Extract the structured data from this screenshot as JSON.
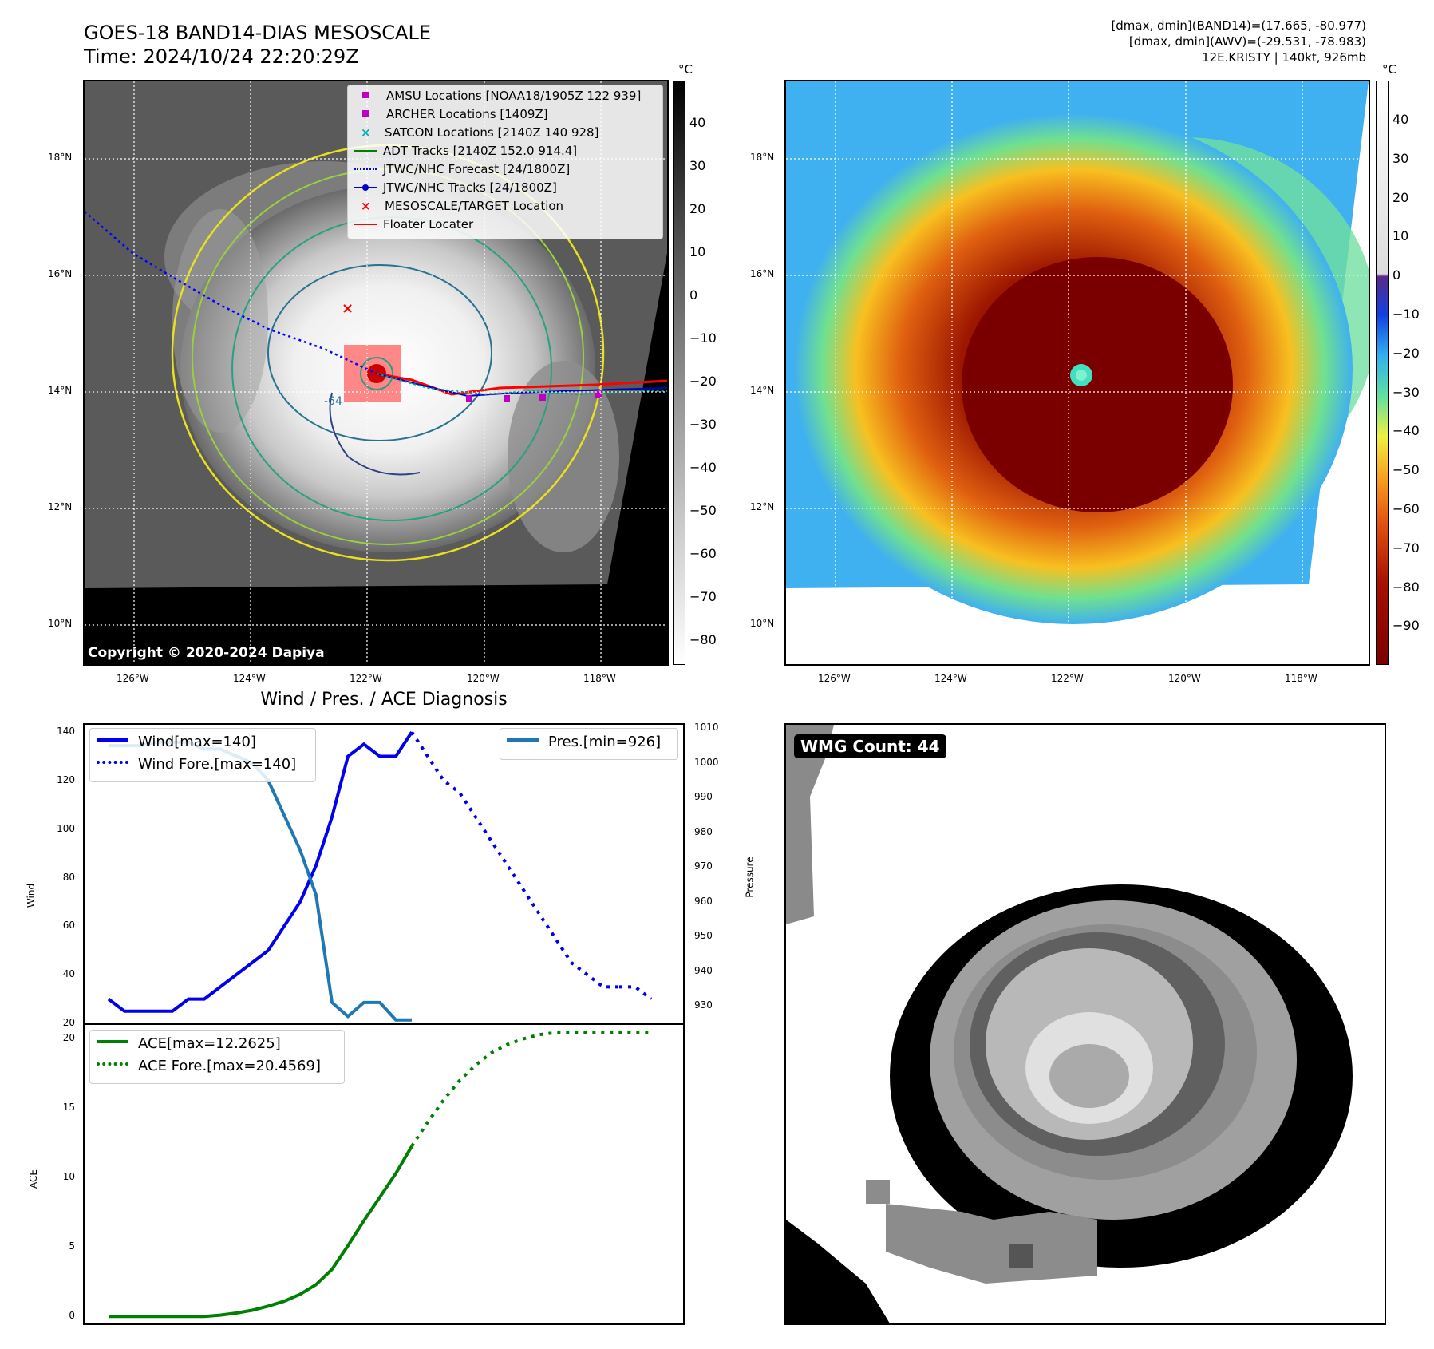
{
  "header": {
    "title_line1": "GOES-18 BAND14-DIAS MESOSCALE",
    "title_line2": "Time: 2024/10/24 22:20:29Z",
    "right_line1": "[dmax, dmin](BAND14)=(17.665, -80.977)",
    "right_line2": "[dmax, dmin](AWV)=(-29.531, -78.983)",
    "right_line3": "12E.KRISTY | 140kt, 926mb"
  },
  "maps": {
    "lon_ticks": [
      "126°W",
      "124°W",
      "122°W",
      "120°W",
      "118°W"
    ],
    "lat_ticks": [
      "18°N",
      "16°N",
      "14°N",
      "12°N",
      "10°N"
    ],
    "copyright": "Copyright © 2020-2024 Dapiya",
    "contour_label": "-64"
  },
  "colorbar_left": {
    "unit": "°C",
    "ticks": [
      "40",
      "30",
      "20",
      "10",
      "0",
      "−10",
      "−20",
      "−30",
      "−40",
      "−50",
      "−60",
      "−70",
      "−80"
    ]
  },
  "colorbar_right": {
    "unit": "°C",
    "ticks": [
      "40",
      "30",
      "20",
      "10",
      "0",
      "−10",
      "−20",
      "−30",
      "−40",
      "−50",
      "−60",
      "−70",
      "−80",
      "−90"
    ]
  },
  "map_legend": {
    "items": [
      {
        "label": "AMSU Locations [NOAA18/1905Z 122 939]",
        "color": "#c000c0",
        "marker": "square"
      },
      {
        "label": "ARCHER Locations [1409Z]",
        "color": "#c000c0",
        "marker": "square"
      },
      {
        "label": "SATCON Locations [2140Z 140 928]",
        "color": "#00b0b0",
        "marker": "x"
      },
      {
        "label": "ADT Tracks [2140Z 152.0 914.4]",
        "color": "#008000",
        "marker": "line"
      },
      {
        "label": "JTWC/NHC Forecast [24/1800Z]",
        "color": "#0000ff",
        "marker": "dotted"
      },
      {
        "label": "JTWC/NHC Tracks [24/1800Z]",
        "color": "#0000cc",
        "marker": "line-dot"
      },
      {
        "label": "MESOSCALE/TARGET Location",
        "color": "#ff0000",
        "marker": "x"
      },
      {
        "label": "Floater Locater",
        "color": "#ff0000",
        "marker": "line"
      }
    ]
  },
  "diag": {
    "title": "Wind / Pres. / ACE Diagnosis",
    "wind_axis_label": "Wind",
    "pressure_axis_label": "Pressure",
    "ace_axis_label": "ACE",
    "wind_legend": [
      "Wind[max=140]",
      "Wind Fore.[max=140]"
    ],
    "pres_legend": "Pres.[min=926]",
    "ace_legend": [
      "ACE[max=12.2625]",
      "ACE Fore.[max=20.4569]"
    ],
    "wind_color": "#0000ee",
    "pres_color": "#1f77b4",
    "ace_color": "#008000"
  },
  "wmg": {
    "label": "WMG Count: 44"
  },
  "chart_data": [
    {
      "type": "line",
      "panel": "wind",
      "ylabel": "Wind",
      "ylim": [
        20,
        143
      ],
      "yticks": [
        20,
        40,
        60,
        80,
        100,
        120,
        140
      ],
      "x": [
        0,
        1,
        2,
        3,
        4,
        5,
        6,
        7,
        8,
        9,
        10,
        11,
        12,
        13,
        14,
        15,
        16,
        17,
        18,
        19,
        20,
        21,
        22,
        23,
        24,
        25,
        26,
        27,
        28,
        29,
        30,
        31,
        32,
        33,
        34
      ],
      "series": [
        {
          "name": "Wind[max=140]",
          "style": "solid",
          "x": [
            0,
            1,
            2,
            3,
            4,
            5,
            6,
            7,
            8,
            9,
            10,
            11,
            12,
            13,
            14,
            15,
            16,
            17,
            18,
            19
          ],
          "values": [
            30,
            25,
            25,
            25,
            25,
            30,
            30,
            35,
            40,
            45,
            50,
            60,
            70,
            85,
            105,
            130,
            135,
            130,
            130,
            140
          ]
        },
        {
          "name": "Wind Fore.[max=140]",
          "style": "dotted",
          "x": [
            19,
            20,
            21,
            22,
            23,
            24,
            25,
            26,
            27,
            28,
            29,
            30,
            31,
            32
          ],
          "values": [
            140,
            130,
            120,
            115,
            105,
            95,
            85,
            75,
            65,
            55,
            45,
            40,
            35,
            35
          ]
        },
        {
          "name": "Wind Fore.[max=140]",
          "style": "dotted",
          "x": [
            32,
            33,
            34
          ],
          "values": [
            35,
            35,
            30
          ]
        }
      ]
    },
    {
      "type": "line",
      "panel": "pressure",
      "ylabel": "Pressure",
      "ylim": [
        925,
        1011
      ],
      "yticks": [
        930,
        940,
        950,
        960,
        970,
        980,
        990,
        1000,
        1010
      ],
      "series": [
        {
          "name": "Pres.[min=926]",
          "style": "solid",
          "x": [
            0,
            1,
            2,
            3,
            4,
            5,
            6,
            7,
            8,
            9,
            10,
            11,
            12,
            13,
            14,
            15,
            16,
            17,
            18,
            19
          ],
          "values": [
            1005,
            1005,
            1005,
            1006,
            1006,
            1006,
            1004,
            1004,
            1002,
            1000,
            995,
            985,
            975,
            962,
            931,
            927,
            931,
            931,
            926,
            926
          ]
        }
      ]
    },
    {
      "type": "line",
      "panel": "ace",
      "ylabel": "ACE",
      "ylim": [
        -0.5,
        21.0
      ],
      "yticks": [
        0,
        5,
        10,
        15,
        20
      ],
      "series": [
        {
          "name": "ACE[max=12.2625]",
          "style": "solid",
          "x": [
            0,
            1,
            2,
            3,
            4,
            5,
            6,
            7,
            8,
            9,
            10,
            11,
            12,
            13,
            14,
            15,
            16,
            17,
            18,
            19
          ],
          "values": [
            0,
            0,
            0,
            0,
            0,
            0,
            0,
            0.1,
            0.25,
            0.45,
            0.75,
            1.1,
            1.6,
            2.3,
            3.4,
            5.1,
            6.9,
            8.6,
            10.3,
            12.26
          ]
        },
        {
          "name": "ACE Fore.[max=20.4569]",
          "style": "dotted",
          "x": [
            19,
            20,
            21,
            22,
            23,
            24,
            25,
            26,
            27,
            28,
            29,
            30,
            31,
            32,
            33,
            34
          ],
          "values": [
            12.26,
            14.0,
            15.6,
            17.0,
            18.1,
            19.0,
            19.6,
            20.0,
            20.3,
            20.45,
            20.45,
            20.45,
            20.45,
            20.45,
            20.45,
            20.45
          ]
        }
      ]
    }
  ]
}
